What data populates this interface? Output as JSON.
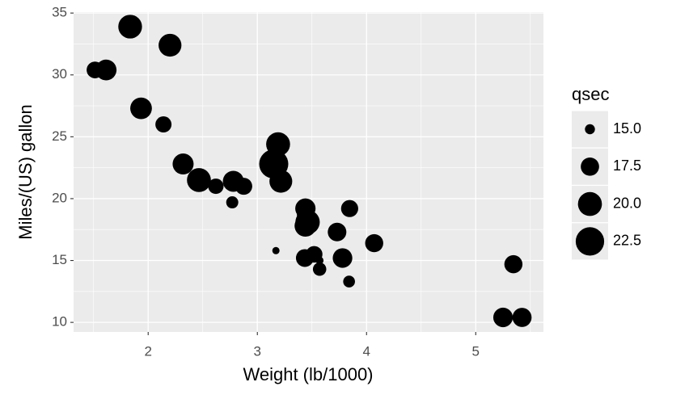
{
  "chart_data": {
    "type": "scatter",
    "x_label": "Weight (lb/1000)",
    "y_label": "Miles/(US) gallon",
    "x": [
      2.62,
      2.875,
      2.32,
      3.215,
      3.44,
      3.46,
      3.57,
      3.19,
      3.15,
      3.44,
      3.44,
      4.07,
      3.73,
      3.78,
      5.25,
      5.424,
      5.345,
      2.2,
      1.615,
      1.835,
      2.465,
      3.52,
      3.435,
      3.84,
      3.845,
      1.935,
      2.14,
      1.513,
      3.17,
      2.77,
      3.57,
      2.78
    ],
    "values": [
      21.0,
      21.0,
      22.8,
      21.4,
      18.7,
      18.1,
      14.3,
      24.4,
      22.8,
      19.2,
      17.8,
      16.4,
      17.3,
      15.2,
      10.4,
      10.4,
      14.7,
      32.4,
      30.4,
      33.9,
      21.5,
      15.5,
      15.2,
      13.3,
      19.2,
      27.3,
      26.0,
      30.4,
      15.8,
      19.7,
      15.0,
      21.4
    ],
    "sizes": [
      16.46,
      17.02,
      18.61,
      19.44,
      17.02,
      20.22,
      15.84,
      20.0,
      22.9,
      18.3,
      18.9,
      17.4,
      17.6,
      18.0,
      17.98,
      17.82,
      17.42,
      19.47,
      18.52,
      19.9,
      20.01,
      16.87,
      17.3,
      15.41,
      17.05,
      18.9,
      16.7,
      16.9,
      14.5,
      15.5,
      14.6,
      18.6
    ],
    "color": "#000000",
    "xlim": [
      1.317,
      5.62
    ],
    "ylim": [
      9.225,
      35.075
    ],
    "xticks": [
      2,
      3,
      4,
      5
    ],
    "yticks": [
      10,
      15,
      20,
      25,
      30,
      35
    ],
    "xminorticks": [
      1.5,
      2.5,
      3.5,
      4.5,
      5.5
    ],
    "yminorticks": [
      12.5,
      17.5,
      22.5,
      27.5,
      32.5
    ],
    "sizelim": [
      14.5,
      22.9
    ],
    "size_legend": {
      "title": "qsec",
      "ticks": [
        {
          "value": 15,
          "label": "15.0"
        },
        {
          "value": 17.5,
          "label": "17.5"
        },
        {
          "value": 20,
          "label": "20.0"
        },
        {
          "value": 22.5,
          "label": "22.5"
        }
      ]
    },
    "grid": true
  }
}
